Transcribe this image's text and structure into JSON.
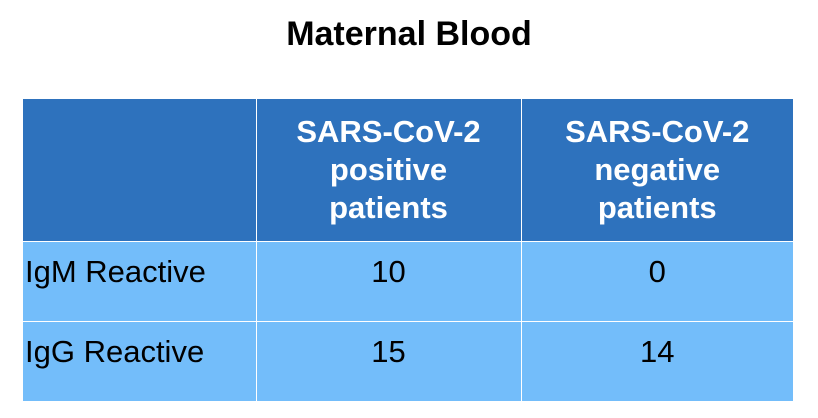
{
  "title": "Maternal Blood",
  "table": {
    "headers": [
      "",
      [
        "SARS-CoV-2",
        "positive",
        "patients"
      ],
      [
        "SARS-CoV-2",
        "negative",
        "patients"
      ]
    ],
    "rows": [
      {
        "label": "IgM Reactive",
        "values": [
          "10",
          "0"
        ]
      },
      {
        "label": "IgG Reactive",
        "values": [
          "15",
          "14"
        ]
      }
    ]
  },
  "colors": {
    "header_bg": "#2e72bd",
    "body_bg": "#73bdfa",
    "header_text": "#ffffff",
    "body_text": "#000000"
  }
}
